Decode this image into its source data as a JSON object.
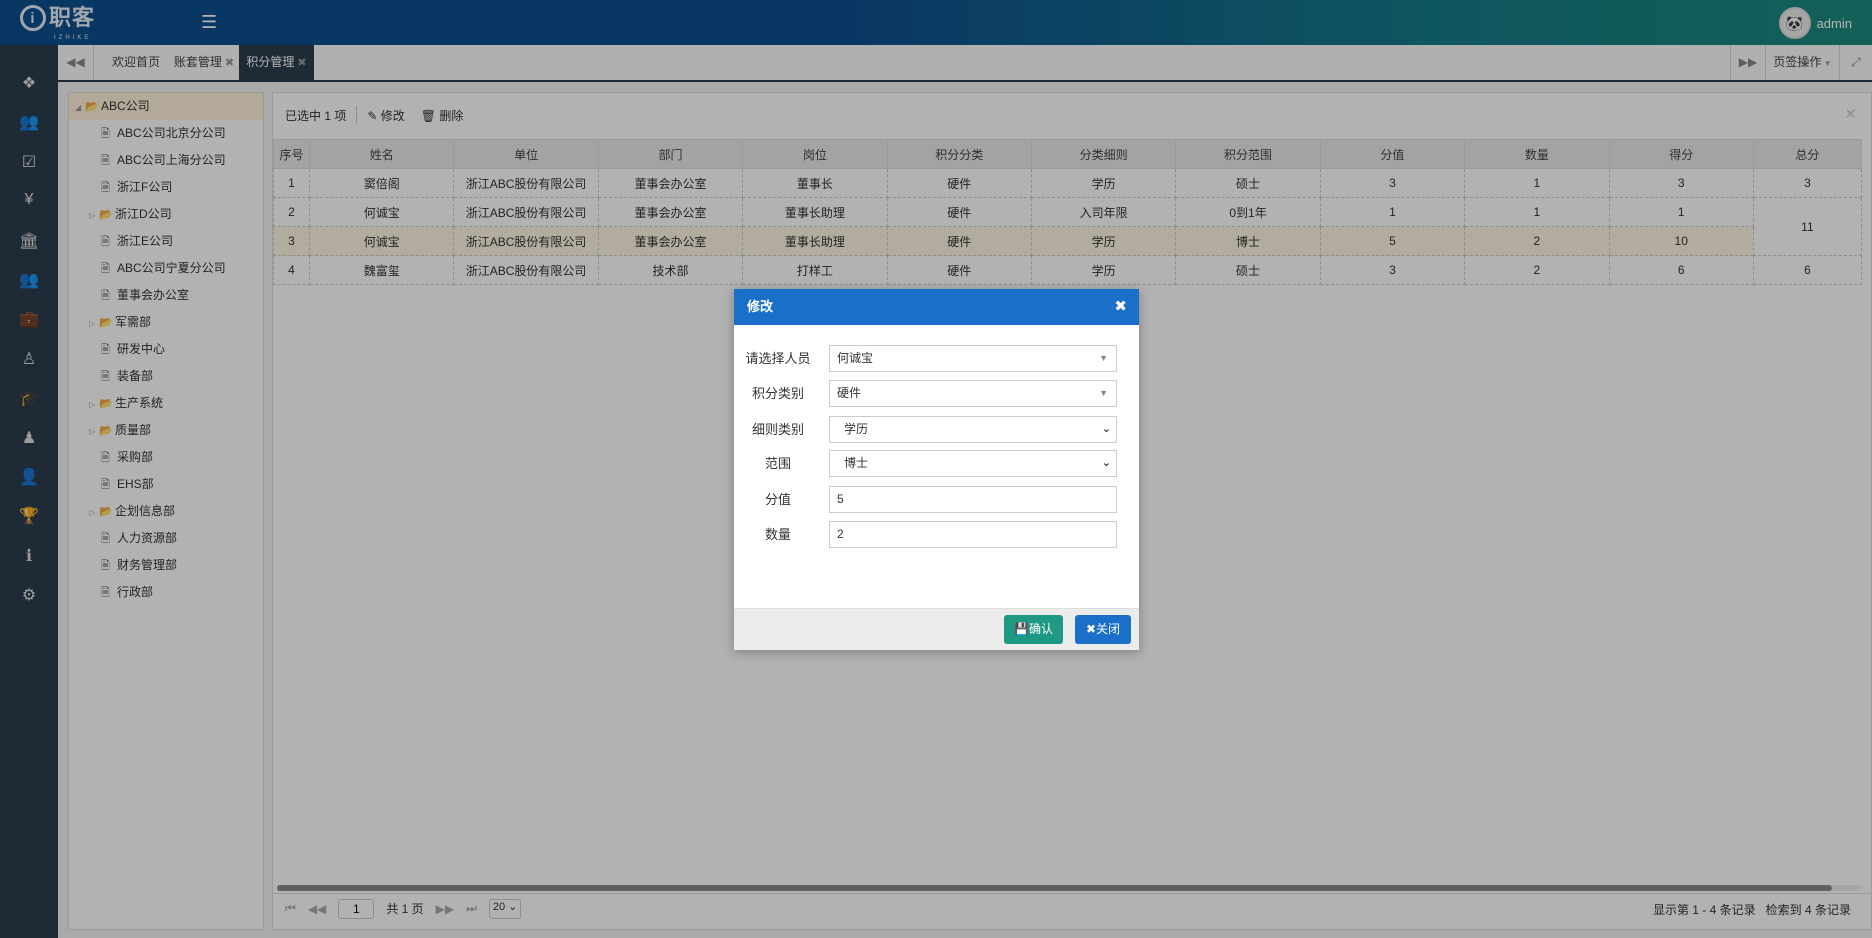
{
  "header": {
    "logo_text": "职客",
    "logo_sub": "IZHIKE",
    "username": "admin"
  },
  "sidebar": {
    "icons": [
      "cubes-icon",
      "users-icon",
      "check-square-icon",
      "yen-icon",
      "bank-icon",
      "group-icon",
      "briefcase-icon",
      "street-view-icon",
      "graduation-cap-icon",
      "child-icon",
      "user-icon",
      "trophy-icon",
      "info-icon",
      "gears-icon"
    ]
  },
  "tabs": {
    "items": [
      {
        "label": "欢迎首页",
        "closable": false,
        "active": false
      },
      {
        "label": "账套管理",
        "closable": true,
        "active": false
      },
      {
        "label": "积分管理",
        "closable": true,
        "active": true
      }
    ],
    "tab_ops": "页签操作"
  },
  "tree": {
    "items": [
      {
        "label": "ABC公司",
        "type": "folder",
        "level": 0,
        "expanded": true,
        "selected": true
      },
      {
        "label": "ABC公司北京分公司",
        "type": "file",
        "level": 1
      },
      {
        "label": "ABC公司上海分公司",
        "type": "file",
        "level": 1
      },
      {
        "label": "浙江F公司",
        "type": "file",
        "level": 1
      },
      {
        "label": "浙江D公司",
        "type": "folder",
        "level": 1
      },
      {
        "label": "浙江E公司",
        "type": "file",
        "level": 1
      },
      {
        "label": "ABC公司宁夏分公司",
        "type": "file",
        "level": 1
      },
      {
        "label": "董事会办公室",
        "type": "file",
        "level": 1
      },
      {
        "label": "军需部",
        "type": "folder",
        "level": 1
      },
      {
        "label": "研发中心",
        "type": "file",
        "level": 1
      },
      {
        "label": "装备部",
        "type": "file",
        "level": 1
      },
      {
        "label": "生产系统",
        "type": "folder",
        "level": 1
      },
      {
        "label": "质量部",
        "type": "folder",
        "level": 1
      },
      {
        "label": "采购部",
        "type": "file",
        "level": 1
      },
      {
        "label": "EHS部",
        "type": "file",
        "level": 1
      },
      {
        "label": "企划信息部",
        "type": "folder",
        "level": 1
      },
      {
        "label": "人力资源部",
        "type": "file",
        "level": 1
      },
      {
        "label": "财务管理部",
        "type": "file",
        "level": 1
      },
      {
        "label": "行政部",
        "type": "file",
        "level": 1
      }
    ]
  },
  "toolbar": {
    "selected_text": "已选中 1 项",
    "edit_label": "修改",
    "delete_label": "删除"
  },
  "table": {
    "columns": [
      "序号",
      "姓名",
      "单位",
      "部门",
      "岗位",
      "积分分类",
      "分类细则",
      "积分范围",
      "分值",
      "数量",
      "得分",
      "总分"
    ],
    "rows": [
      {
        "cells": [
          "1",
          "窦倍阁",
          "浙江ABC股份有限公司",
          "董事会办公室",
          "董事长",
          "硬件",
          "学历",
          "硕士",
          "3",
          "1",
          "3"
        ],
        "total": "3",
        "selected": false
      },
      {
        "cells": [
          "2",
          "何诚宝",
          "浙江ABC股份有限公司",
          "董事会办公室",
          "董事长助理",
          "硬件",
          "入司年限",
          "0到1年",
          "1",
          "1",
          "1"
        ],
        "total": "11",
        "total_rowspan": 2,
        "selected": false
      },
      {
        "cells": [
          "3",
          "何诚宝",
          "浙江ABC股份有限公司",
          "董事会办公室",
          "董事长助理",
          "硬件",
          "学历",
          "博士",
          "5",
          "2",
          "10"
        ],
        "selected": true
      },
      {
        "cells": [
          "4",
          "魏富玺",
          "浙江ABC股份有限公司",
          "技术部",
          "打样工",
          "硬件",
          "学历",
          "硕士",
          "3",
          "2",
          "6"
        ],
        "total": "6",
        "selected": false
      }
    ]
  },
  "pager": {
    "page": "1",
    "total_pages": "共 1 页",
    "page_size": "20",
    "showing": "显示第 1 - 4 条记录",
    "found": "检索到 4 条记录"
  },
  "dialog": {
    "title": "修改",
    "fields": [
      {
        "label": "请选择人员",
        "value": "何诚宝",
        "kind": "combo"
      },
      {
        "label": "积分类别",
        "value": "硬件",
        "kind": "combo"
      },
      {
        "label": "细则类别",
        "value": "学历",
        "kind": "select"
      },
      {
        "label": "范围",
        "value": "博士",
        "kind": "select"
      },
      {
        "label": "分值",
        "value": "5",
        "kind": "text"
      },
      {
        "label": "数量",
        "value": "2",
        "kind": "text"
      }
    ],
    "confirm_label": "确认",
    "close_label": "关闭"
  },
  "colors": {
    "header_blue": "#0e4f8f",
    "header_teal": "#1d8a7e",
    "sidebar": "#2c3e50",
    "dialog_header": "#1a6fc9",
    "confirm": "#1e9a83",
    "close": "#1a6fc9",
    "selected_row": "#fff7e4"
  }
}
